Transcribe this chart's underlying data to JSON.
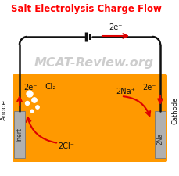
{
  "title": "Salt Electrolysis Charge Flow",
  "title_color": "#ff0000",
  "title_fontsize": 8.5,
  "watermark": "MCAT-Review.org",
  "watermark_color": "#c8c8c8",
  "bg_color": "#ffffff",
  "solution_color": "#ff9900",
  "electrode_color": "#b0b0b0",
  "wire_color": "#111111",
  "arrow_color": "#dd0000",
  "text_color": "#111111",
  "figsize": [
    2.3,
    2.25
  ],
  "dpi": 100,
  "anode_label": "Anode",
  "cathode_label": "Cathode",
  "inert_label": "Inert",
  "na_label": "2Na",
  "cl2_label": "Cl₂",
  "na_ion_label": "2Na⁺",
  "cl_ion_label": "2Cl⁻",
  "top_e_label": "2e⁻",
  "left_e_label": "2e⁻",
  "right_e_label": "2e⁻"
}
